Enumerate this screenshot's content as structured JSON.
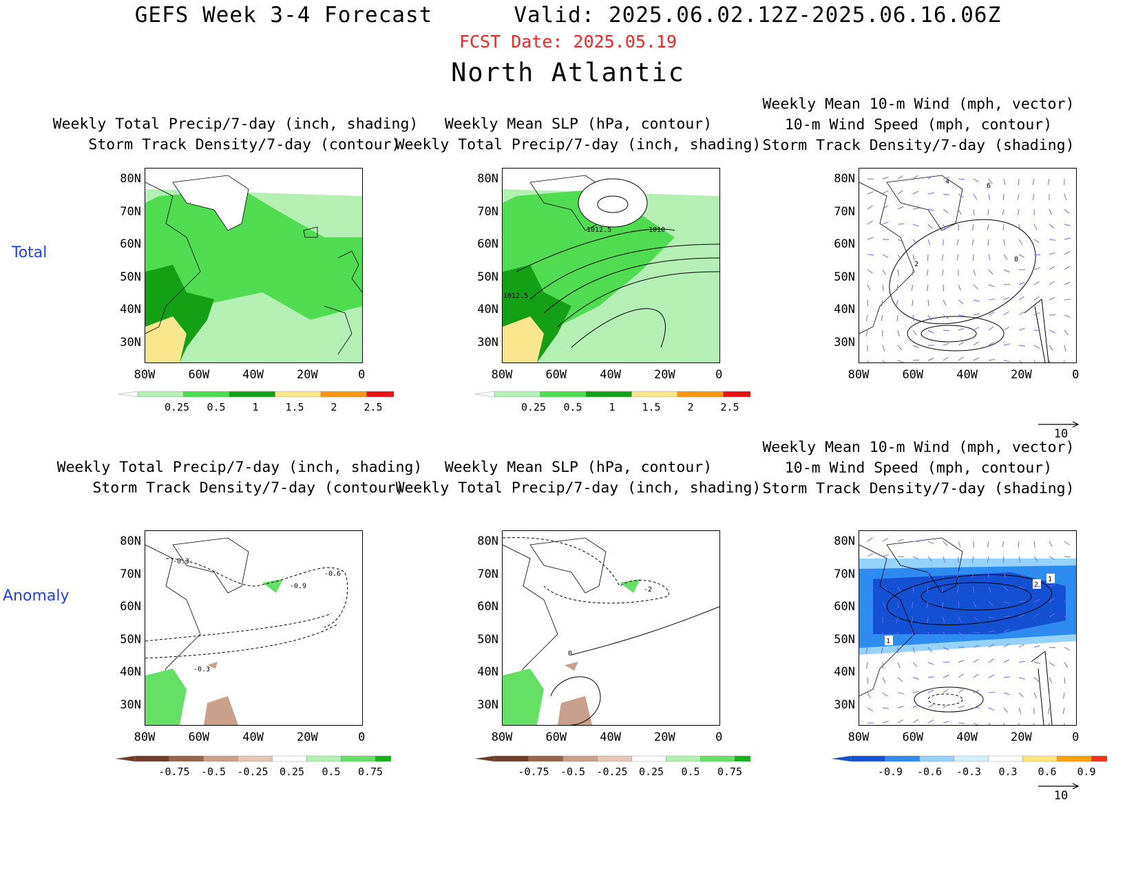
{
  "header": {
    "title": "GEFS Week 3-4 Forecast      Valid: 2025.06.02.12Z-2025.06.16.06Z",
    "fcst_date": "FCST Date: 2025.05.19",
    "region": "North Atlantic"
  },
  "rows": {
    "total": "Total",
    "anomaly": "Anomaly"
  },
  "axes": {
    "lat": [
      "80N",
      "70N",
      "60N",
      "50N",
      "40N",
      "30N"
    ],
    "lon": [
      "80W",
      "60W",
      "40W",
      "20W",
      "0"
    ]
  },
  "titles": {
    "p1": "Weekly Total Precip/7-day (inch, shading)\n  Storm Track Density/7-day (contour)",
    "p2": "Weekly Mean SLP (hPa, contour)\nWeekly Total Precip/7-day (inch, shading)",
    "p3": "Weekly Mean 10-m Wind (mph, vector)\n10-m Wind Speed (mph, contour)\nStorm Track Density/7-day (shading)",
    "p4": "Weekly Total Precip/7-day (inch, shading)\n  Storm Track Density/7-day (contour)",
    "p5": "Weekly Mean SLP (hPa, contour)\nWeekly Total Precip/7-day (inch, shading)",
    "p6": "Weekly Mean 10-m Wind (mph, vector)\n10-m Wind Speed (mph, contour)\nStorm Track Density/7-day (shading)"
  },
  "contour_labels": {
    "slp_a": "1012.5",
    "slp_b": "1010",
    "slp_c": "1012.5",
    "wind_4": "4",
    "wind_6": "6",
    "wind_8": "8",
    "wind_2": "2",
    "std_a": "-0.3",
    "std_b": "-0.6",
    "std_c": "-0.9",
    "std_d": "-0.3",
    "slpa_a": "-2",
    "slpa_b": "0",
    "dens_a": "1",
    "dens_b": "2",
    "dens_c": "1"
  },
  "vector_ref": {
    "value": "10"
  },
  "colorbars": {
    "precip": {
      "labels": [
        "0.25",
        "0.5",
        "1",
        "1.5",
        "2",
        "2.5"
      ],
      "colors": [
        "#b4f0b4",
        "#50dc50",
        "#14a014",
        "#fae68c",
        "#fa9614",
        "#e61414"
      ]
    },
    "anom": {
      "labels": [
        "-0.75",
        "-0.5",
        "-0.25",
        "0.25",
        "0.5",
        "0.75"
      ],
      "colors": [
        "#6e3c28",
        "#96644b",
        "#c8a08c",
        "#e1c8b9",
        "#ffffff",
        "#b4f0b4",
        "#64e164",
        "#14b414"
      ]
    },
    "density": {
      "labels": [
        "-0.9",
        "-0.6",
        "-0.3",
        "0.3",
        "0.6",
        "0.9"
      ],
      "colors": [
        "#1450d2",
        "#2d8cf0",
        "#96d2fa",
        "#d2f0fa",
        "#ffffff",
        "#ffe678",
        "#ffa000",
        "#f03214"
      ]
    }
  }
}
